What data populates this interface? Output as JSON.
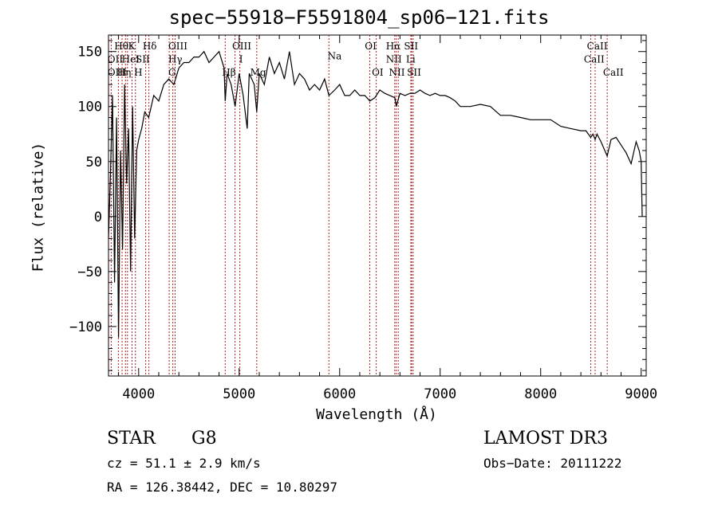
{
  "chart_data": {
    "type": "line",
    "title": "spec−55918−F5591804_sp06−121.fits",
    "xlabel": "Wavelength (Å)",
    "ylabel": "Flux (relative)",
    "xlim": [
      3700,
      9050
    ],
    "ylim": [
      -145,
      165
    ],
    "xticks": [
      4000,
      5000,
      6000,
      7000,
      8000,
      9000
    ],
    "xtick_labels": [
      "4000",
      "5000",
      "6000",
      "7000",
      "8000",
      "9000"
    ],
    "yticks": [
      -100,
      -50,
      0,
      50,
      100,
      150
    ],
    "ytick_labels": [
      "−100",
      "−50",
      "0",
      "50",
      "100",
      "150"
    ],
    "grid": false,
    "series": [
      {
        "name": "flux",
        "x": [
          3700,
          3720,
          3740,
          3760,
          3780,
          3800,
          3820,
          3840,
          3860,
          3880,
          3900,
          3920,
          3940,
          3960,
          3980,
          4000,
          4030,
          4060,
          4100,
          4150,
          4200,
          4250,
          4300,
          4350,
          4400,
          4450,
          4500,
          4550,
          4600,
          4650,
          4700,
          4750,
          4800,
          4850,
          4861,
          4880,
          4920,
          4960,
          5000,
          5040,
          5080,
          5100,
          5150,
          5175,
          5200,
          5250,
          5300,
          5350,
          5400,
          5450,
          5500,
          5550,
          5600,
          5650,
          5700,
          5750,
          5800,
          5850,
          5893,
          5950,
          6000,
          6050,
          6100,
          6150,
          6200,
          6250,
          6300,
          6350,
          6400,
          6450,
          6500,
          6550,
          6563,
          6600,
          6650,
          6700,
          6750,
          6800,
          6850,
          6900,
          6950,
          7000,
          7050,
          7100,
          7150,
          7200,
          7300,
          7400,
          7500,
          7600,
          7700,
          7800,
          7900,
          8000,
          8100,
          8200,
          8300,
          8400,
          8450,
          8498,
          8520,
          8542,
          8560,
          8600,
          8662,
          8700,
          8750,
          8800,
          8850,
          8900,
          8950,
          8980,
          9000,
          9010
        ],
        "y": [
          -20,
          40,
          110,
          -60,
          90,
          -110,
          60,
          -30,
          120,
          30,
          80,
          -50,
          100,
          -20,
          60,
          70,
          80,
          95,
          90,
          110,
          105,
          120,
          125,
          120,
          135,
          140,
          140,
          145,
          145,
          150,
          140,
          145,
          150,
          135,
          105,
          130,
          120,
          100,
          130,
          110,
          80,
          130,
          120,
          95,
          130,
          120,
          145,
          130,
          140,
          125,
          150,
          120,
          130,
          125,
          115,
          120,
          115,
          125,
          110,
          115,
          120,
          110,
          110,
          115,
          110,
          110,
          105,
          108,
          115,
          112,
          110,
          108,
          100,
          112,
          110,
          112,
          112,
          115,
          112,
          110,
          112,
          110,
          110,
          108,
          105,
          100,
          100,
          102,
          100,
          92,
          92,
          90,
          88,
          88,
          88,
          82,
          80,
          78,
          78,
          72,
          75,
          70,
          75,
          68,
          55,
          70,
          72,
          65,
          58,
          48,
          68,
          60,
          50,
          0
        ]
      }
    ],
    "lines": [
      {
        "name": "Hθ",
        "x": 3798
      },
      {
        "name": "OII",
        "x": 3727
      },
      {
        "name": "OIII",
        "x": 3869
      },
      {
        "name": "Hη",
        "x": 3835
      },
      {
        "name": "K",
        "x": 3934
      },
      {
        "name": "HeI",
        "x": 3889
      },
      {
        "name": "H",
        "x": 3968
      },
      {
        "name": "SII",
        "x": 4070
      },
      {
        "name": "Hδ",
        "x": 4102
      },
      {
        "name": "G",
        "x": 4304
      },
      {
        "name": "OIII",
        "x": 4363
      },
      {
        "name": "Hγ",
        "x": 4340
      },
      {
        "name": "OIII",
        "x": 4959
      },
      {
        "name": "OIII",
        "x": 5007
      },
      {
        "name": "Hβ",
        "x": 4861
      },
      {
        "name": "Mg",
        "x": 5175
      },
      {
        "name": "Na",
        "x": 5893
      },
      {
        "name": "OI",
        "x": 6300
      },
      {
        "name": "OI",
        "x": 6364
      },
      {
        "name": "NII",
        "x": 6548
      },
      {
        "name": "Hα",
        "x": 6563
      },
      {
        "name": "NII",
        "x": 6583
      },
      {
        "name": "SII",
        "x": 6716
      },
      {
        "name": "Li",
        "x": 6708
      },
      {
        "name": "SII",
        "x": 6731
      },
      {
        "name": "CaII",
        "x": 8498
      },
      {
        "name": "CaII",
        "x": 8542
      },
      {
        "name": "CaII",
        "x": 8662
      }
    ],
    "line_labels": [
      {
        "text": "Hθ",
        "x": 3758,
        "y": 152,
        "anchor": "start"
      },
      {
        "text": "OII",
        "x": 3690,
        "y": 140,
        "anchor": "start"
      },
      {
        "text": "OIII",
        "x": 3690,
        "y": 128,
        "anchor": "start"
      },
      {
        "text": "K",
        "x": 3895,
        "y": 152,
        "anchor": "start"
      },
      {
        "text": "HeI",
        "x": 3832,
        "y": 140,
        "anchor": "start"
      },
      {
        "text": "Hη",
        "x": 3785,
        "y": 128,
        "anchor": "start"
      },
      {
        "text": "Hδ",
        "x": 4040,
        "y": 152,
        "anchor": "start"
      },
      {
        "text": "SII",
        "x": 3970,
        "y": 140,
        "anchor": "start"
      },
      {
        "text": "H",
        "x": 3955,
        "y": 128,
        "anchor": "start"
      },
      {
        "text": "OIII",
        "x": 4295,
        "y": 152,
        "anchor": "start"
      },
      {
        "text": "Hγ",
        "x": 4295,
        "y": 140,
        "anchor": "start"
      },
      {
        "text": "G",
        "x": 4295,
        "y": 128,
        "anchor": "start"
      },
      {
        "text": "OIII",
        "x": 4930,
        "y": 152,
        "anchor": "start"
      },
      {
        "text": "Hβ",
        "x": 4830,
        "y": 128,
        "anchor": "start"
      },
      {
        "text": "I",
        "x": 5000,
        "y": 140,
        "anchor": "start"
      },
      {
        "text": "Mg",
        "x": 5110,
        "y": 128,
        "anchor": "start"
      },
      {
        "text": "Na",
        "x": 5880,
        "y": 143,
        "anchor": "start"
      },
      {
        "text": "OI",
        "x": 6250,
        "y": 152,
        "anchor": "start"
      },
      {
        "text": "OI",
        "x": 6320,
        "y": 128,
        "anchor": "start"
      },
      {
        "text": "Hα",
        "x": 6460,
        "y": 152,
        "anchor": "start"
      },
      {
        "text": "SII",
        "x": 6640,
        "y": 152,
        "anchor": "start"
      },
      {
        "text": "NII",
        "x": 6460,
        "y": 140,
        "anchor": "start"
      },
      {
        "text": "Li",
        "x": 6660,
        "y": 140,
        "anchor": "start"
      },
      {
        "text": "NII",
        "x": 6490,
        "y": 128,
        "anchor": "start"
      },
      {
        "text": "SII",
        "x": 6670,
        "y": 128,
        "anchor": "start"
      },
      {
        "text": "CaII",
        "x": 8460,
        "y": 152,
        "anchor": "start"
      },
      {
        "text": "CaII",
        "x": 8430,
        "y": 140,
        "anchor": "start"
      },
      {
        "text": "CaII",
        "x": 8620,
        "y": 128,
        "anchor": "start"
      }
    ]
  },
  "info": {
    "object_class": "STAR",
    "subclass": "G8",
    "redshift": "cz = 51.1 ± 2.9 km/s",
    "coords": "RA = 126.38442, DEC =  10.80297",
    "survey": "LAMOST DR3",
    "obs_date": "Obs−Date: 20111222"
  }
}
